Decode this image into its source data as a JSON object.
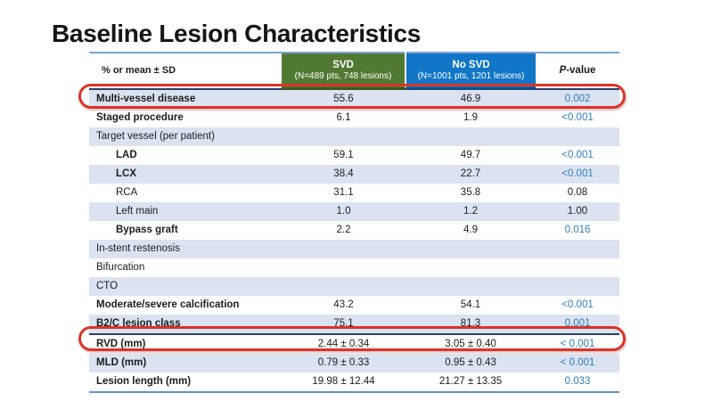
{
  "slide": {
    "title": "Baseline Lesion Characteristics"
  },
  "table": {
    "header": {
      "label": "% or mean ± SD",
      "svd_title": "SVD",
      "svd_sub": "(N=489 pts, 748 lesions)",
      "nosvd_title": "No SVD",
      "nosvd_sub": "(N=1001 pts, 1201 lesions)",
      "p_italic": "P",
      "p_rest": "-value"
    },
    "rows": [
      {
        "label": "Multi-vessel disease",
        "svd": "55.6",
        "nosvd": "46.9",
        "p": "0.002"
      },
      {
        "label": "Staged procedure",
        "svd": "6.1",
        "nosvd": "1.9",
        "p": "<0.001"
      },
      {
        "label": "Target vessel (per patient)",
        "svd": "",
        "nosvd": "",
        "p": ""
      },
      {
        "label": "LAD",
        "svd": "59.1",
        "nosvd": "49.7",
        "p": "<0.001"
      },
      {
        "label": "LCX",
        "svd": "38.4",
        "nosvd": "22.7",
        "p": "<0.001"
      },
      {
        "label": "RCA",
        "svd": "31.1",
        "nosvd": "35.8",
        "p": "0.08"
      },
      {
        "label": "Left main",
        "svd": "1.0",
        "nosvd": "1.2",
        "p": "1.00"
      },
      {
        "label": "Bypass graft",
        "svd": "2.2",
        "nosvd": "4.9",
        "p": "0.016"
      },
      {
        "label": "In-stent restenosis",
        "svd": "",
        "nosvd": "",
        "p": ""
      },
      {
        "label": "Bifurcation",
        "svd": "",
        "nosvd": "",
        "p": ""
      },
      {
        "label": "CTO",
        "svd": "",
        "nosvd": "",
        "p": ""
      },
      {
        "label": "Moderate/severe calcification",
        "svd": "43.2",
        "nosvd": "54.1",
        "p": "<0.001"
      },
      {
        "label": "B2/C lesion class",
        "svd": "75.1",
        "nosvd": "81.3",
        "p": "0.001"
      },
      {
        "label": "RVD (mm)",
        "svd": "2.44 ± 0.34",
        "nosvd": "3.05 ± 0.40",
        "p": "< 0.001"
      },
      {
        "label": "MLD (mm)",
        "svd": "0.79 ± 0.33",
        "nosvd": "0.95 ± 0.43",
        "p": "< 0.001"
      },
      {
        "label": "Lesion length (mm)",
        "svd": "19.98 ± 12.44",
        "nosvd": "21.27 ± 13.35",
        "p": "0.033"
      }
    ],
    "highlighted_rows": [
      "Multi-vessel disease",
      "RVD (mm)"
    ]
  },
  "colors": {
    "svd_header": "#507932",
    "nosvd_header": "#1176c6",
    "band_row": "#dbe3f1",
    "significant_p_text": "#2e7cbe",
    "highlight_oval": "#de3226",
    "table_rule": "#7ba2d6"
  }
}
